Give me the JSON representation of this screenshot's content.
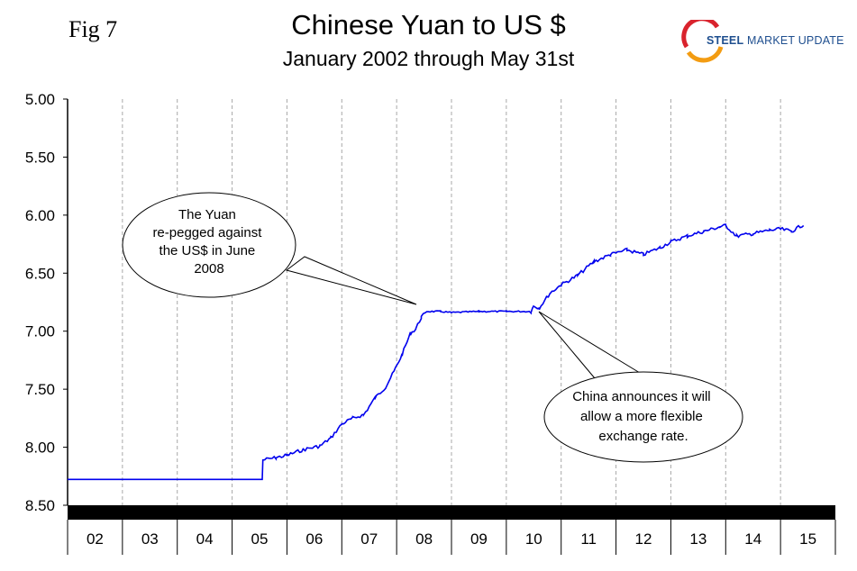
{
  "header": {
    "fig_label": "Fig 7",
    "logo_text_bold": "STEEL",
    "logo_text_rest": " MARKET UPDATE",
    "logo_colors": [
      "#d9232d",
      "#f39c12",
      "#1f4f8f"
    ]
  },
  "chart_data": {
    "type": "line",
    "title": "Chinese Yuan to US $",
    "subtitle": "January 2002 through May 31st",
    "xlabel": "",
    "ylabel": "",
    "y_inverted": true,
    "ylim": [
      5.0,
      8.5
    ],
    "yticks": [
      "5.00",
      "5.50",
      "6.00",
      "6.50",
      "7.00",
      "7.50",
      "8.00",
      "8.50"
    ],
    "x_categories": [
      "02",
      "03",
      "04",
      "05",
      "06",
      "07",
      "08",
      "09",
      "10",
      "11",
      "12",
      "13",
      "14",
      "15"
    ],
    "xlim": [
      2002.0,
      2016.0
    ],
    "grid": {
      "vertical": true,
      "horizontal": false
    },
    "line_color": "#0000ee",
    "series": [
      {
        "values": [
          [
            2002.0,
            8.277
          ],
          [
            2003.0,
            8.277
          ],
          [
            2004.0,
            8.277
          ],
          [
            2005.0,
            8.277
          ],
          [
            2005.55,
            8.277
          ],
          [
            2005.56,
            8.11
          ],
          [
            2005.8,
            8.09
          ],
          [
            2006.0,
            8.07
          ],
          [
            2006.3,
            8.02
          ],
          [
            2006.6,
            7.99
          ],
          [
            2006.8,
            7.92
          ],
          [
            2007.0,
            7.8
          ],
          [
            2007.2,
            7.75
          ],
          [
            2007.4,
            7.72
          ],
          [
            2007.6,
            7.58
          ],
          [
            2007.8,
            7.48
          ],
          [
            2007.95,
            7.35
          ],
          [
            2008.1,
            7.2
          ],
          [
            2008.25,
            7.02
          ],
          [
            2008.35,
            6.98
          ],
          [
            2008.45,
            6.88
          ],
          [
            2008.55,
            6.83
          ],
          [
            2008.8,
            6.83
          ],
          [
            2009.0,
            6.84
          ],
          [
            2009.5,
            6.83
          ],
          [
            2010.0,
            6.83
          ],
          [
            2010.45,
            6.83
          ],
          [
            2010.5,
            6.78
          ],
          [
            2010.6,
            6.8
          ],
          [
            2010.8,
            6.67
          ],
          [
            2011.0,
            6.6
          ],
          [
            2011.3,
            6.52
          ],
          [
            2011.6,
            6.4
          ],
          [
            2011.9,
            6.34
          ],
          [
            2012.2,
            6.3
          ],
          [
            2012.5,
            6.34
          ],
          [
            2012.8,
            6.28
          ],
          [
            2013.0,
            6.23
          ],
          [
            2013.3,
            6.18
          ],
          [
            2013.6,
            6.14
          ],
          [
            2013.9,
            6.1
          ],
          [
            2014.0,
            6.09
          ],
          [
            2014.2,
            6.18
          ],
          [
            2014.5,
            6.16
          ],
          [
            2014.8,
            6.13
          ],
          [
            2015.0,
            6.12
          ],
          [
            2015.2,
            6.14
          ],
          [
            2015.42,
            6.08
          ]
        ]
      }
    ],
    "annotations": [
      {
        "lines": [
          "The Yuan",
          "re-pegged against",
          "the US$ in June",
          "2008"
        ],
        "points_to": [
          2008.4,
          6.83
        ]
      },
      {
        "lines": [
          "China announces it will",
          "allow a more flexible",
          "exchange rate."
        ],
        "points_to": [
          2010.5,
          6.78
        ]
      }
    ]
  }
}
